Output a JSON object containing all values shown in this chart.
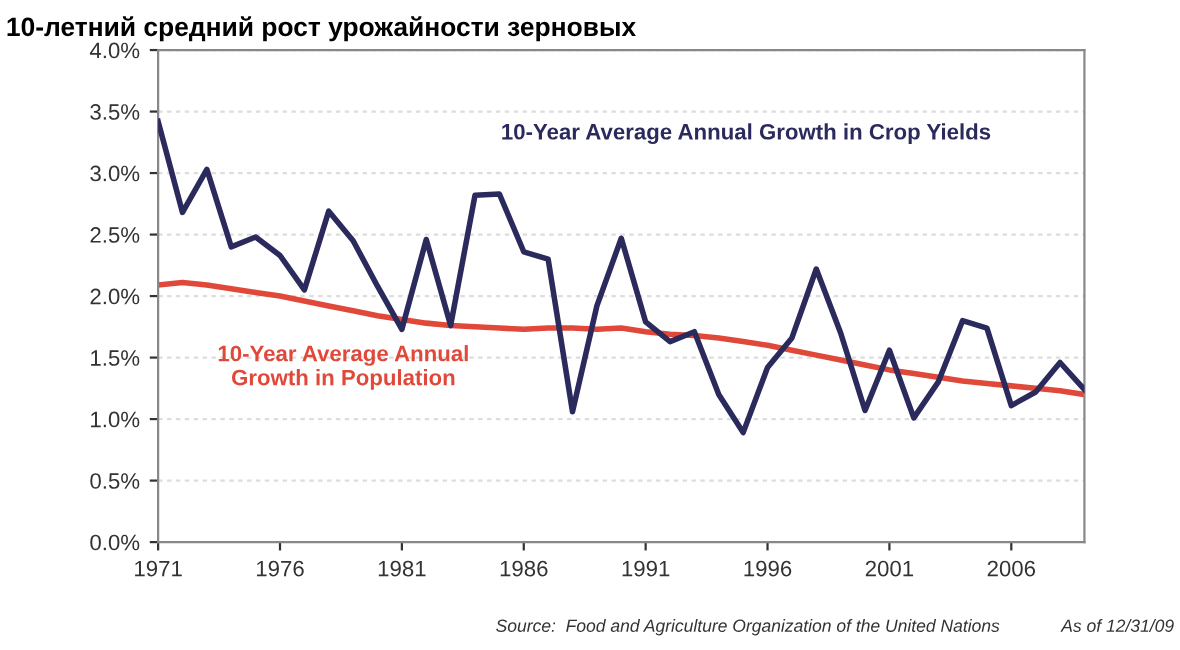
{
  "chart_data": {
    "type": "line",
    "title": "10-летний средний рост урожайности зерновых",
    "x": [
      1971,
      1972,
      1973,
      1974,
      1975,
      1976,
      1977,
      1978,
      1979,
      1980,
      1981,
      1982,
      1983,
      1984,
      1985,
      1986,
      1987,
      1988,
      1989,
      1990,
      1991,
      1992,
      1993,
      1994,
      1995,
      1996,
      1997,
      1998,
      1999,
      2000,
      2001,
      2002,
      2003,
      2004,
      2005,
      2006,
      2007,
      2008,
      2009
    ],
    "series": [
      {
        "name": "10-Year Average Annual Growth in Crop Yields",
        "color": "#2b2a5c",
        "values": [
          3.42,
          2.68,
          3.03,
          2.4,
          2.48,
          2.33,
          2.05,
          2.69,
          2.45,
          2.08,
          1.73,
          2.46,
          1.76,
          2.82,
          2.83,
          2.36,
          2.3,
          1.06,
          1.92,
          2.47,
          1.79,
          1.63,
          1.71,
          1.2,
          0.89,
          1.42,
          1.66,
          2.22,
          1.7,
          1.07,
          1.56,
          1.01,
          1.3,
          1.8,
          1.74,
          1.11,
          1.22,
          1.46,
          1.24
        ]
      },
      {
        "name": "10-Year Average Annual\nGrowth in Population",
        "color": "#e0483a",
        "values": [
          2.09,
          2.11,
          2.09,
          2.06,
          2.03,
          2.0,
          1.96,
          1.92,
          1.88,
          1.84,
          1.81,
          1.78,
          1.76,
          1.75,
          1.74,
          1.73,
          1.74,
          1.74,
          1.73,
          1.74,
          1.71,
          1.69,
          1.68,
          1.66,
          1.63,
          1.6,
          1.56,
          1.52,
          1.48,
          1.44,
          1.4,
          1.37,
          1.34,
          1.31,
          1.29,
          1.27,
          1.25,
          1.23,
          1.2
        ]
      }
    ],
    "xlim": [
      1971,
      2009
    ],
    "xticks": [
      1971,
      1976,
      1981,
      1986,
      1991,
      1996,
      2001,
      2006
    ],
    "ylim": [
      0,
      4.0
    ],
    "yticks": [
      {
        "value": 0,
        "label": "0.0%"
      },
      {
        "value": 0.5,
        "label": "0.5%"
      },
      {
        "value": 1.0,
        "label": "1.0%"
      },
      {
        "value": 1.5,
        "label": "1.5%"
      },
      {
        "value": 2.0,
        "label": "2.0%"
      },
      {
        "value": 2.5,
        "label": "2.5%"
      },
      {
        "value": 3.0,
        "label": "3.0%"
      },
      {
        "value": 3.5,
        "label": "3.5%"
      },
      {
        "value": 4.0,
        "label": "4.0%"
      }
    ],
    "grid": "y",
    "legend": false,
    "marker": "none",
    "line_style": "solid",
    "annotations": [
      "Source:  Food and Agriculture Organization of the United Nations",
      "As of 12/31/09"
    ]
  }
}
